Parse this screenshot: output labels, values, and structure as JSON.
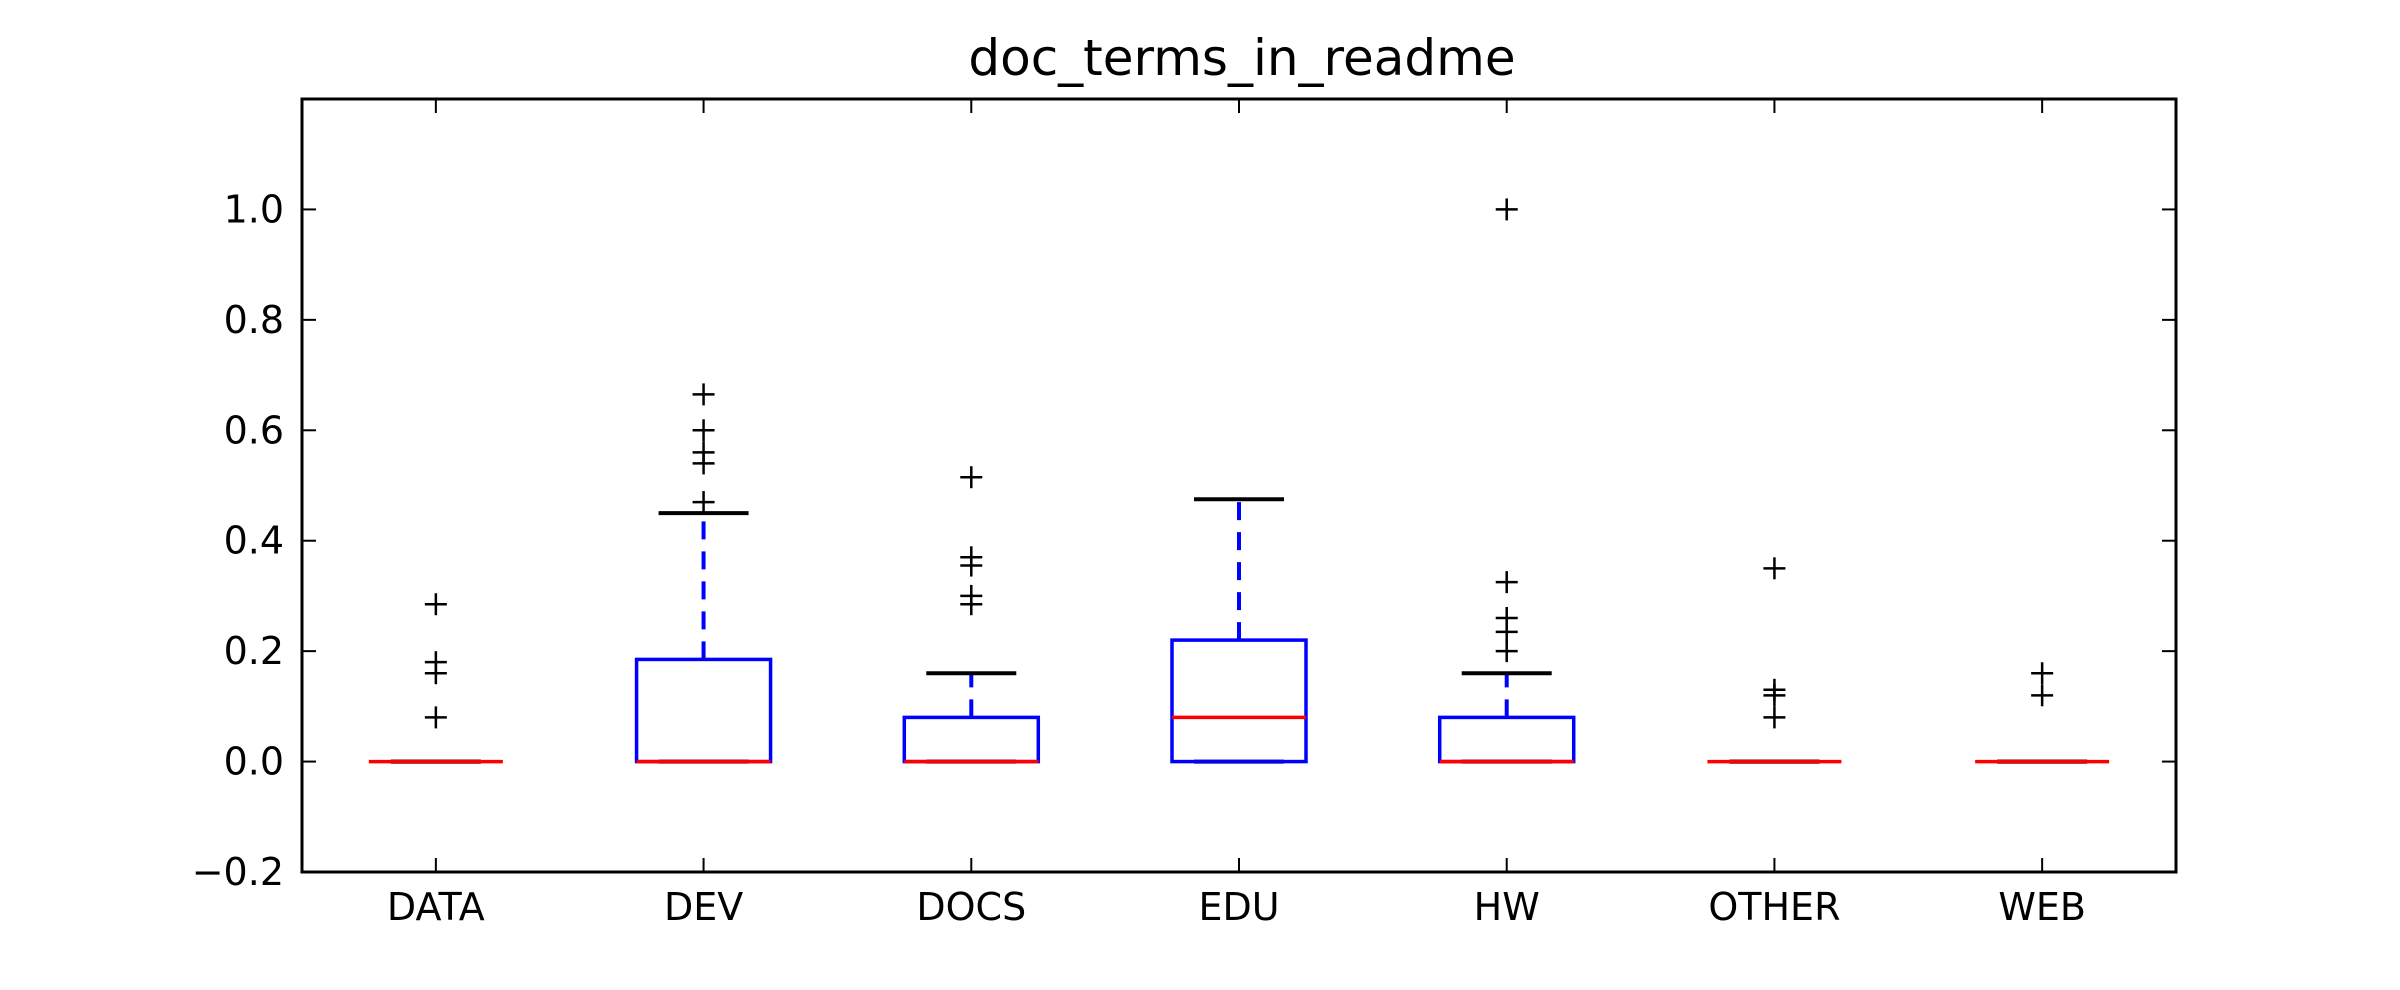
{
  "chart_data": {
    "type": "box",
    "title": "doc_terms_in_readme",
    "xlabel": "",
    "ylabel": "",
    "ylim": [
      -0.2,
      1.2
    ],
    "yticks": [
      -0.2,
      0.0,
      0.2,
      0.4,
      0.6,
      0.8,
      1.0
    ],
    "ytick_labels": [
      "−0.2",
      "0.0",
      "0.2",
      "0.4",
      "0.6",
      "0.8",
      "1.0"
    ],
    "categories": [
      "DATA",
      "DEV",
      "DOCS",
      "EDU",
      "HW",
      "OTHER",
      "WEB"
    ],
    "boxes": [
      {
        "category": "DATA",
        "q1": 0.0,
        "median": 0.0,
        "q3": 0.0,
        "whisker_low": 0.0,
        "whisker_high": 0.0,
        "outliers": [
          0.08,
          0.16,
          0.18,
          0.285
        ]
      },
      {
        "category": "DEV",
        "q1": 0.0,
        "median": 0.0,
        "q3": 0.185,
        "whisker_low": 0.0,
        "whisker_high": 0.45,
        "outliers": [
          0.47,
          0.54,
          0.56,
          0.6,
          0.665
        ]
      },
      {
        "category": "DOCS",
        "q1": 0.0,
        "median": 0.0,
        "q3": 0.08,
        "whisker_low": 0.0,
        "whisker_high": 0.16,
        "outliers": [
          0.285,
          0.3,
          0.355,
          0.37,
          0.515
        ]
      },
      {
        "category": "EDU",
        "q1": 0.0,
        "median": 0.08,
        "q3": 0.22,
        "whisker_low": 0.0,
        "whisker_high": 0.475,
        "outliers": []
      },
      {
        "category": "HW",
        "q1": 0.0,
        "median": 0.0,
        "q3": 0.08,
        "whisker_low": 0.0,
        "whisker_high": 0.16,
        "outliers": [
          0.2,
          0.235,
          0.26,
          0.325,
          1.0
        ]
      },
      {
        "category": "OTHER",
        "q1": 0.0,
        "median": 0.0,
        "q3": 0.0,
        "whisker_low": 0.0,
        "whisker_high": 0.0,
        "outliers": [
          0.08,
          0.12,
          0.13,
          0.35
        ]
      },
      {
        "category": "WEB",
        "q1": 0.0,
        "median": 0.0,
        "q3": 0.0,
        "whisker_low": 0.0,
        "whisker_high": 0.0,
        "outliers": [
          0.12,
          0.16
        ]
      }
    ],
    "colors": {
      "box": "#0000ff",
      "median": "#ff0000",
      "whisker_cap": "#000000",
      "outlier": "#000000",
      "axes": "#000000"
    },
    "grid": false,
    "legend": "none"
  }
}
